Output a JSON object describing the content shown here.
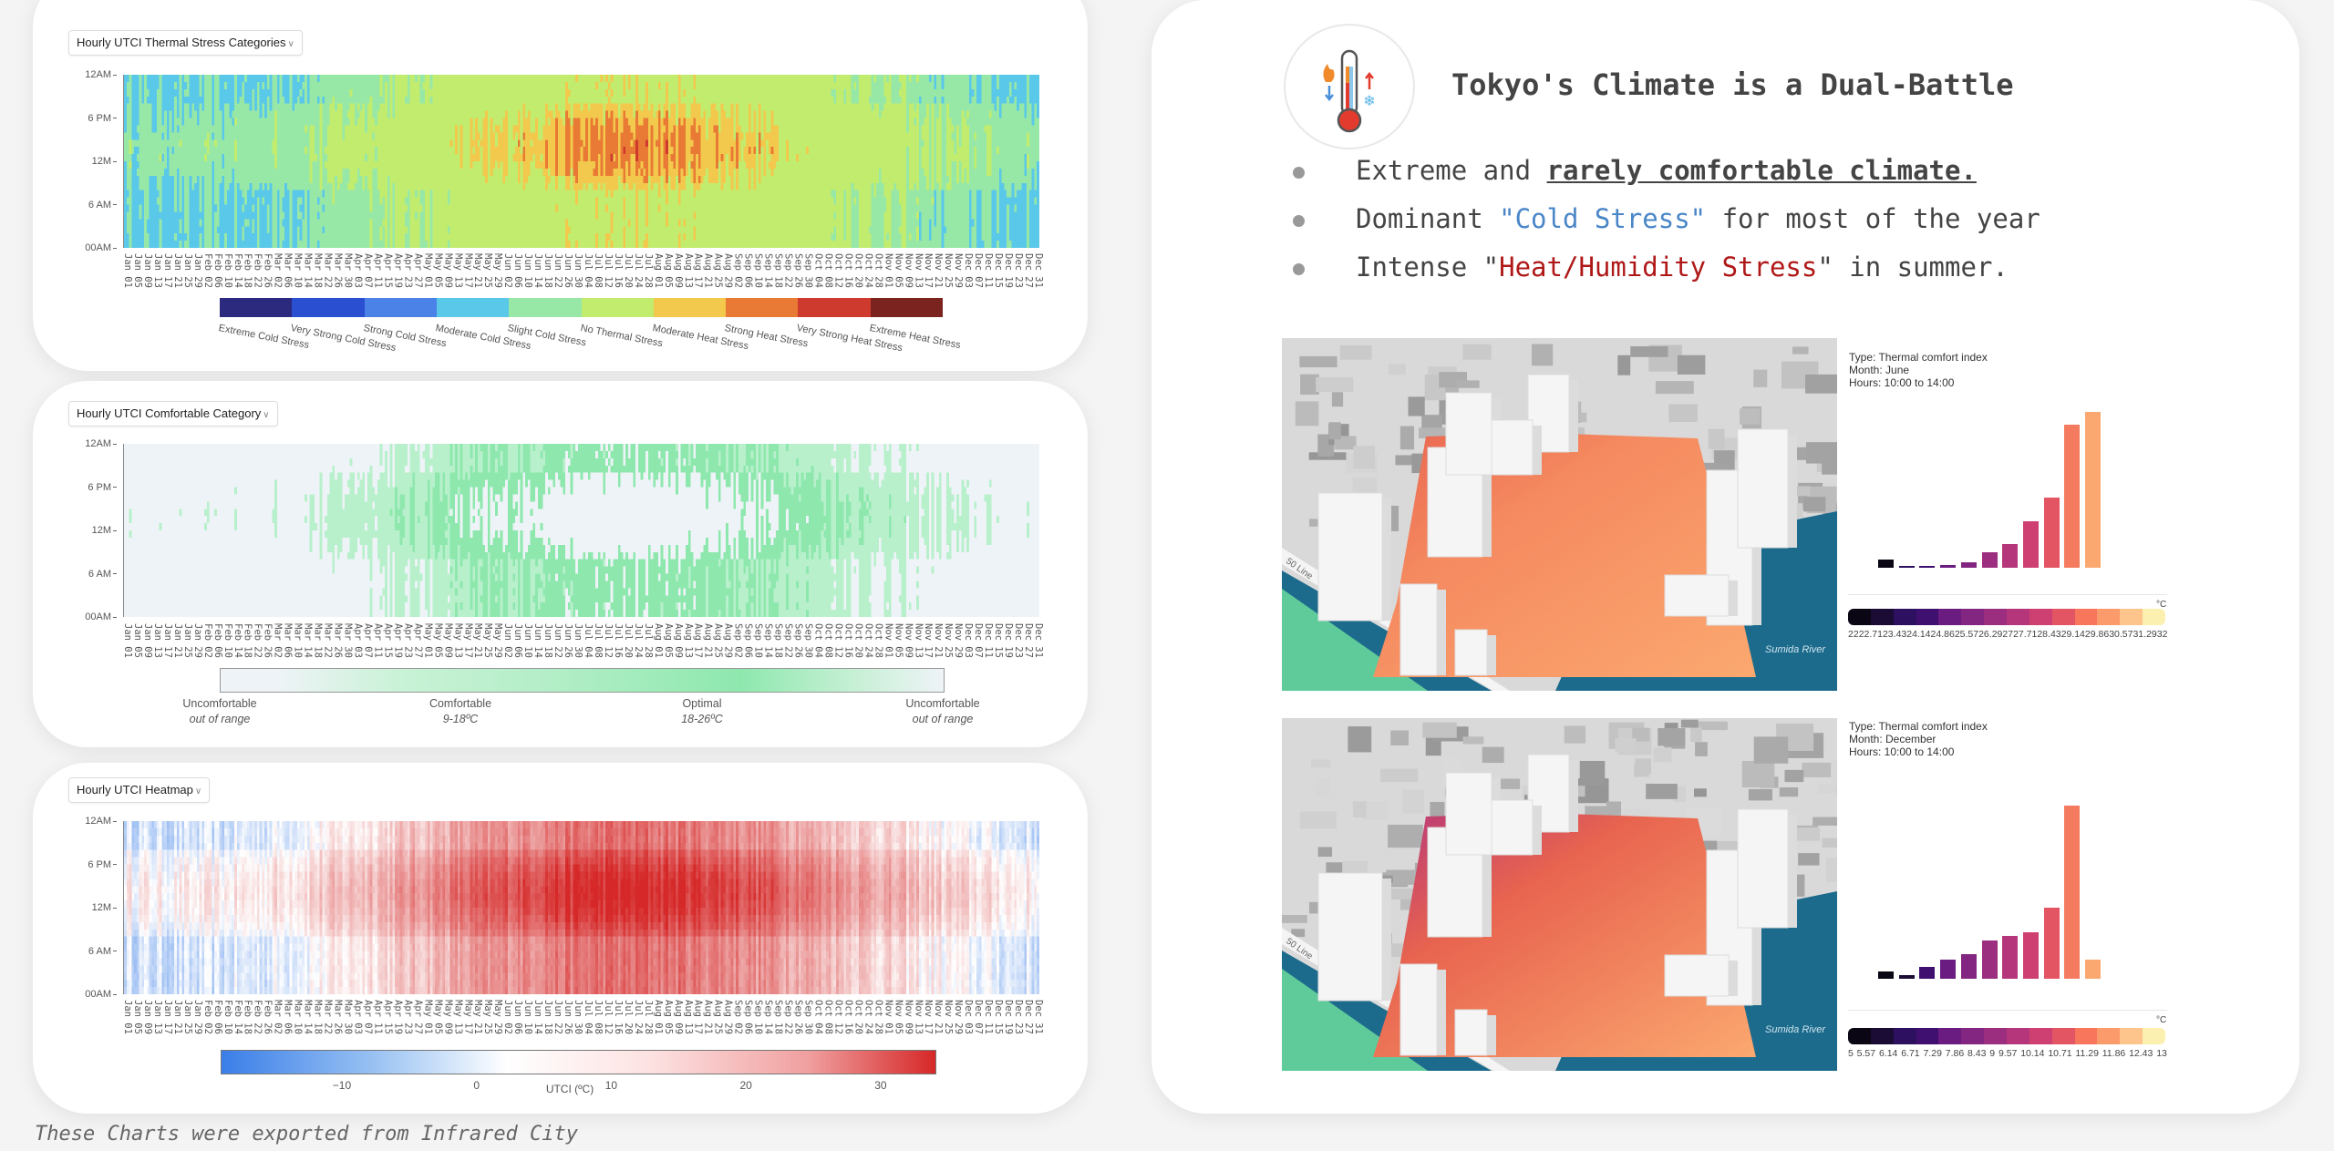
{
  "left_panel": {
    "charts": [
      {
        "dropdown": "Hourly UTCI Thermal Stress Categories"
      },
      {
        "dropdown": "Hourly UTCI Comfortable Category"
      },
      {
        "dropdown": "Hourly UTCI Heatmap"
      }
    ],
    "caption": "These Charts were exported from Infrared City"
  },
  "right_panel": {
    "title": "Tokyo's Climate is a Dual-Battle",
    "bullets": [
      {
        "pre": "Extreme and ",
        "emph": "rarely comfortable climate.",
        "post": ""
      },
      {
        "pre": "Dominant ",
        "emph": "\"Cold Stress\"",
        "post": " for most of the year"
      },
      {
        "pre": "Intense \"",
        "emph": "Heat/Humidity Stress",
        "post": "\" in summer."
      }
    ],
    "maps": [
      {
        "river_label": "Sumida River",
        "line_label": "50 Line"
      },
      {
        "river_label": "Sumida River",
        "line_label": "50 Line"
      }
    ]
  },
  "chart_data": [
    {
      "type": "heatmap",
      "title": "Hourly UTCI Thermal Stress Categories",
      "y_tick_labels": [
        "12AM",
        "6 PM",
        "12M",
        "6 AM",
        "00AM"
      ],
      "x_tick_labels": [
        "Jan 01",
        "Jan 05",
        "Jan 09",
        "Jan 13",
        "Jan 17",
        "Jan 21",
        "Jan 25",
        "Jan 29",
        "Feb 02",
        "Feb 06",
        "Feb 10",
        "Feb 14",
        "Feb 18",
        "Feb 22",
        "Feb 26",
        "Mar 02",
        "Mar 06",
        "Mar 10",
        "Mar 14",
        "Mar 18",
        "Mar 22",
        "Mar 26",
        "Mar 30",
        "Apr 03",
        "Apr 07",
        "Apr 11",
        "Apr 15",
        "Apr 19",
        "Apr 23",
        "Apr 27",
        "May 01",
        "May 05",
        "May 09",
        "May 13",
        "May 17",
        "May 21",
        "May 25",
        "May 29",
        "Jun 02",
        "Jun 06",
        "Jun 10",
        "Jun 14",
        "Jun 18",
        "Jun 22",
        "Jun 26",
        "Jun 30",
        "Jul 04",
        "Jul 08",
        "Jul 12",
        "Jul 16",
        "Jul 20",
        "Jul 24",
        "Jul 28",
        "Aug 01",
        "Aug 05",
        "Aug 09",
        "Aug 13",
        "Aug 17",
        "Aug 21",
        "Aug 25",
        "Aug 29",
        "Sep 02",
        "Sep 06",
        "Sep 10",
        "Sep 14",
        "Sep 18",
        "Sep 22",
        "Sep 26",
        "Sep 30",
        "Oct 04",
        "Oct 08",
        "Oct 12",
        "Oct 16",
        "Oct 20",
        "Oct 24",
        "Oct 28",
        "Nov 01",
        "Nov 05",
        "Nov 09",
        "Nov 13",
        "Nov 17",
        "Nov 21",
        "Nov 25",
        "Nov 29",
        "Dec 03",
        "Dec 07",
        "Dec 11",
        "Dec 15",
        "Dec 19",
        "Dec 23",
        "Dec 27",
        "Dec 31"
      ],
      "legend": [
        {
          "label": "Extreme Cold Stress",
          "color": "#2b2a7f"
        },
        {
          "label": "Very Strong Cold Stress",
          "color": "#2a4fd1"
        },
        {
          "label": "Strong Cold Stress",
          "color": "#4a82e8"
        },
        {
          "label": "Moderate Cold Stress",
          "color": "#5ac8e8"
        },
        {
          "label": "Slight Cold Stress",
          "color": "#97e8a7"
        },
        {
          "label": "No Thermal Stress",
          "color": "#c2ec6e"
        },
        {
          "label": "Moderate Heat Stress",
          "color": "#f2c94c"
        },
        {
          "label": "Strong Heat Stress",
          "color": "#e97a35"
        },
        {
          "label": "Very Strong Heat Stress",
          "color": "#cf3a2e"
        },
        {
          "label": "Extreme Heat Stress",
          "color": "#7a231f"
        }
      ]
    },
    {
      "type": "heatmap",
      "title": "Hourly UTCI Comfortable Category",
      "legend": [
        {
          "label": "Uncomfortable",
          "sub": "out of range"
        },
        {
          "label": "Comfortable",
          "sub": "9-18ºC"
        },
        {
          "label": "Optimal",
          "sub": "18-26ºC"
        },
        {
          "label": "Uncomfortable",
          "sub": "out of range"
        }
      ],
      "colors": {
        "uncomfortable": "#eef3f7",
        "comfortable": "#b8f0cc",
        "optimal": "#8ee8ae"
      }
    },
    {
      "type": "heatmap",
      "title": "Hourly UTCI Heatmap",
      "colorbar_title": "UTCI (ºC)",
      "colorbar_ticks": [
        "−10",
        "0",
        "10",
        "20",
        "30"
      ],
      "colorbar_range": [
        -19,
        34
      ]
    },
    {
      "type": "bar",
      "info": [
        "Type: Thermal comfort index",
        "Month: June",
        "Hours: 10:00 to 14:00"
      ],
      "unit": "°C",
      "values": [
        5,
        0.5,
        1,
        1.5,
        3.5,
        10,
        15,
        30,
        45,
        92,
        100
      ],
      "bar_colors": [
        "#0b0614",
        "#2d1160",
        "#401070",
        "#6b1c81",
        "#832681",
        "#9b2e7f",
        "#b5367a",
        "#cd4071",
        "#e45563",
        "#f47b60",
        "#fba870"
      ],
      "legend_ticks": [
        "22",
        "22.71",
        "23.43",
        "24.14",
        "24.86",
        "25.57",
        "26.29",
        "27",
        "27.71",
        "28.43",
        "29.14",
        "29.86",
        "30.57",
        "31.29",
        "32"
      ]
    },
    {
      "type": "bar",
      "info": [
        "Type: Thermal comfort index",
        "Month: December",
        "Hours: 10:00 to 14:00"
      ],
      "unit": "°C",
      "values": [
        4.4,
        2,
        7,
        11,
        14,
        22,
        25,
        27,
        41,
        100,
        11
      ],
      "bar_colors": [
        "#0b0614",
        "#1b0c36",
        "#401070",
        "#6b1c81",
        "#832681",
        "#9b2e7f",
        "#b5367a",
        "#cd4071",
        "#e45563",
        "#f47b60",
        "#fba870"
      ],
      "legend_ticks": [
        "5",
        "5.57",
        "6.14",
        "6.71",
        "7.29",
        "7.86",
        "8.43",
        "9",
        "9.57",
        "10.14",
        "10.71",
        "11.29",
        "11.86",
        "12.43",
        "13"
      ]
    }
  ],
  "colorbar_palette": [
    "#0b0614",
    "#1b0c36",
    "#2d1160",
    "#401070",
    "#6b1c81",
    "#832681",
    "#9b2e7f",
    "#b5367a",
    "#cd4071",
    "#e45563",
    "#f8765c",
    "#fb9a6a",
    "#fdc48b",
    "#fbf0b0"
  ]
}
